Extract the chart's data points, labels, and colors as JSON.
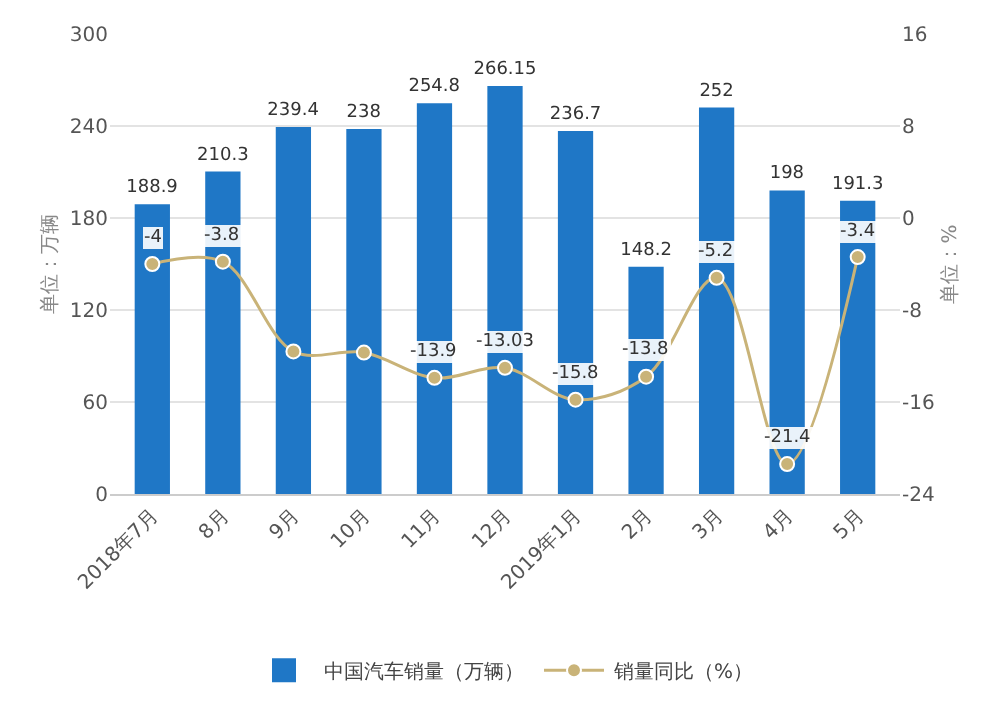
{
  "chart_data": {
    "type": "bar",
    "categories": [
      "2018年7月",
      "8月",
      "9月",
      "10月",
      "11月",
      "12月",
      "2019年1月",
      "2月",
      "3月",
      "4月",
      "5月"
    ],
    "ylabel": "单位：万辆",
    "y2label": "单位：%",
    "series": [
      {
        "name": "中国汽车销量（万辆）",
        "color": "#1f77c6",
        "values": [
          188.9,
          210.3,
          239.4,
          238,
          254.8,
          266.15,
          236.7,
          148.2,
          252,
          198,
          191.3
        ],
        "value_labels": [
          "188.9",
          "210.3",
          "239.4",
          "238",
          "254.8",
          "266.15",
          "236.7",
          "148.2",
          "252",
          "198",
          "191.3"
        ]
      },
      {
        "name": "销量同比（%）",
        "type": "line",
        "axis": "y2",
        "color": "#c9b378",
        "values": [
          -4,
          -3.8,
          -11.6,
          -11.7,
          -13.9,
          -13.03,
          -15.8,
          -13.8,
          -5.2,
          -21.4,
          -3.4
        ],
        "value_labels": [
          "-4",
          "-3.8",
          null,
          null,
          "-13.9",
          "-13.03",
          "-15.8",
          "-13.8",
          "-5.2",
          "-21.4",
          "-3.4"
        ]
      }
    ],
    "ylim": [
      0,
      300
    ],
    "yticks": [
      0,
      60,
      120,
      180,
      240,
      300
    ],
    "y2lim": [
      -24,
      16
    ],
    "y2ticks": [
      -24,
      -16,
      -8,
      0,
      8,
      16
    ],
    "grid": "y",
    "legend": "bottom",
    "marker": "circle",
    "line_style": "solid"
  }
}
